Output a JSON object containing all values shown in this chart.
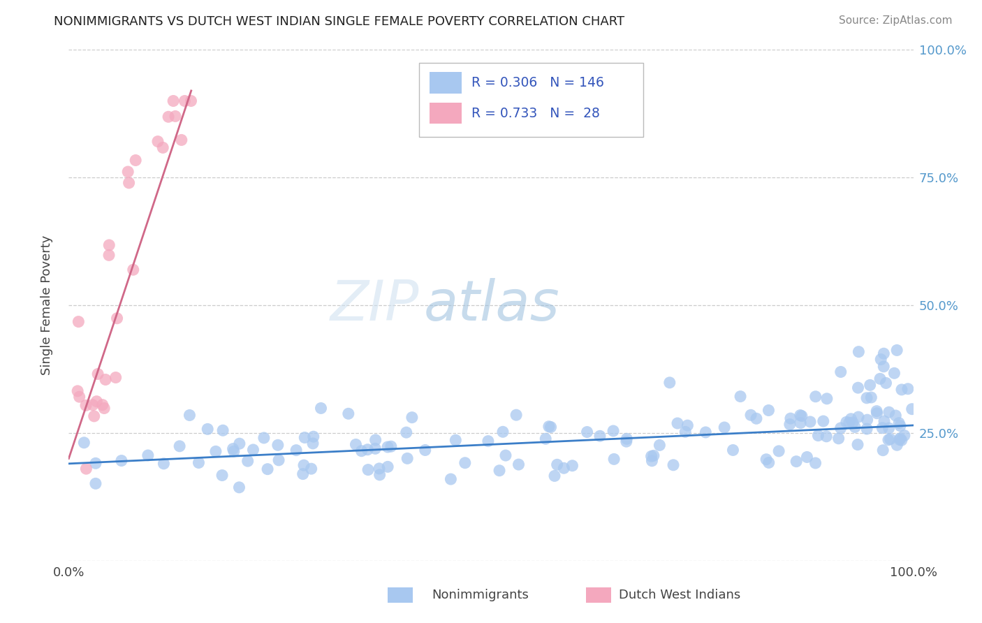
{
  "title": "NONIMMIGRANTS VS DUTCH WEST INDIAN SINGLE FEMALE POVERTY CORRELATION CHART",
  "source": "Source: ZipAtlas.com",
  "ylabel": "Single Female Poverty",
  "xlim": [
    0,
    1
  ],
  "ylim": [
    0,
    1
  ],
  "legend_r_blue": "0.306",
  "legend_n_blue": "146",
  "legend_r_pink": "0.733",
  "legend_n_pink": " 28",
  "blue_color": "#a8c8f0",
  "pink_color": "#f4a8be",
  "trend_blue": "#3b7ec8",
  "trend_pink": "#d06888",
  "legend_text_color": "#3355bb",
  "watermark_zip": "#c8dff0",
  "watermark_atlas": "#a0c8e8",
  "background_color": "#ffffff",
  "grid_color": "#cccccc",
  "right_tick_color": "#5599cc",
  "blue_trend_x": [
    0.0,
    1.0
  ],
  "blue_trend_y": [
    0.19,
    0.265
  ],
  "pink_trend_x": [
    0.0,
    0.145
  ],
  "pink_trend_y": [
    0.2,
    0.92
  ]
}
